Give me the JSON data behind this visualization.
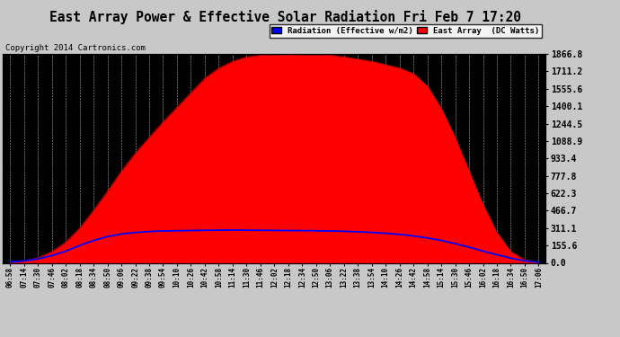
{
  "title": "East Array Power & Effective Solar Radiation Fri Feb 7 17:20",
  "copyright": "Copyright 2014 Cartronics.com",
  "legend_labels": [
    "Radiation (Effective w/m2)",
    "East Array  (DC Watts)"
  ],
  "legend_colors": [
    "#0000ff",
    "#ff0000"
  ],
  "outer_bg": "#c8c8c8",
  "plot_bg_color": "#000000",
  "grid_color": "#ffffff",
  "y_max": 1866.8,
  "y_min": 0.0,
  "y_ticks": [
    0.0,
    155.6,
    311.1,
    466.7,
    622.3,
    777.8,
    933.4,
    1088.9,
    1244.5,
    1400.1,
    1555.6,
    1711.2,
    1866.8
  ],
  "x_labels": [
    "06:58",
    "07:14",
    "07:30",
    "07:46",
    "08:02",
    "08:18",
    "08:34",
    "08:50",
    "09:06",
    "09:22",
    "09:38",
    "09:54",
    "10:10",
    "10:26",
    "10:42",
    "10:58",
    "11:14",
    "11:30",
    "11:46",
    "12:02",
    "12:18",
    "12:34",
    "12:50",
    "13:06",
    "13:22",
    "13:38",
    "13:54",
    "14:10",
    "14:26",
    "14:42",
    "14:58",
    "15:14",
    "15:30",
    "15:46",
    "16:02",
    "16:18",
    "16:34",
    "16:50",
    "17:06"
  ],
  "red_data": [
    5,
    18,
    45,
    100,
    185,
    310,
    470,
    640,
    820,
    980,
    1120,
    1260,
    1390,
    1520,
    1650,
    1740,
    1800,
    1840,
    1855,
    1860,
    1862,
    1860,
    1858,
    1855,
    1840,
    1820,
    1800,
    1770,
    1740,
    1690,
    1580,
    1380,
    1120,
    820,
    520,
    270,
    100,
    25,
    5
  ],
  "blue_data": [
    8,
    18,
    35,
    65,
    105,
    155,
    200,
    235,
    258,
    272,
    280,
    285,
    287,
    289,
    291,
    292,
    293,
    292,
    291,
    290,
    289,
    288,
    287,
    285,
    282,
    278,
    272,
    264,
    254,
    240,
    222,
    200,
    172,
    140,
    105,
    72,
    42,
    18,
    5
  ],
  "red_fill_color": "#ff0000",
  "blue_line_color": "#0000ff",
  "title_fontsize": 10.5,
  "copyright_fontsize": 6.5,
  "tick_fontsize": 5.5,
  "ytick_fontsize": 7.0,
  "legend_fontsize": 6.5
}
